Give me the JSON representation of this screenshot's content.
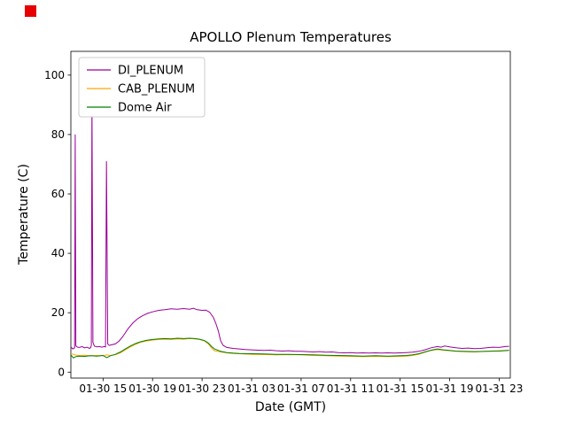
{
  "marker": {
    "color": "#e60000"
  },
  "chart_data": {
    "type": "line",
    "title": "APOLLO Plenum Temperatures",
    "xlabel": "Date (GMT)",
    "ylabel": "Temperature (C)",
    "x_unit": "hours since 01-30 12:00 GMT",
    "xlim": [
      0.4,
      35.9
    ],
    "ylim": [
      -2,
      108
    ],
    "grid": false,
    "legend_position": "upper left",
    "yticks": [
      0,
      20,
      40,
      60,
      80,
      100
    ],
    "xticks": [
      {
        "pos": 3,
        "label": "01-30 15"
      },
      {
        "pos": 7,
        "label": "01-30 19"
      },
      {
        "pos": 11,
        "label": "01-30 23"
      },
      {
        "pos": 15,
        "label": "01-31 03"
      },
      {
        "pos": 19,
        "label": "01-31 07"
      },
      {
        "pos": 23,
        "label": "01-31 11"
      },
      {
        "pos": 27,
        "label": "01-31 15"
      },
      {
        "pos": 31,
        "label": "01-31 19"
      },
      {
        "pos": 35,
        "label": "01-31 23"
      }
    ],
    "series": [
      {
        "name": "DI_PLENUM",
        "color": "#990099",
        "x": [
          0.4,
          0.55,
          0.7,
          0.75,
          0.8,
          0.85,
          0.95,
          1.1,
          1.3,
          1.5,
          1.7,
          1.9,
          2.0,
          2.05,
          2.1,
          2.18,
          2.3,
          2.5,
          2.7,
          2.9,
          3.1,
          3.2,
          3.28,
          3.38,
          3.5,
          3.7,
          4.0,
          4.3,
          4.6,
          5.0,
          5.4,
          5.8,
          6.2,
          6.6,
          7.0,
          7.5,
          8.0,
          8.5,
          9.0,
          9.5,
          10.0,
          10.3,
          10.6,
          11.0,
          11.3,
          11.6,
          11.9,
          12.1,
          12.3,
          12.5,
          12.7,
          13.0,
          13.5,
          14.0,
          14.5,
          15.0,
          15.5,
          16.0,
          16.5,
          17.0,
          17.5,
          18.0,
          18.5,
          19.0,
          19.5,
          20.0,
          20.5,
          21.0,
          21.5,
          22.0,
          22.5,
          23.0,
          23.5,
          24.0,
          24.5,
          25.0,
          25.5,
          26.0,
          26.5,
          27.0,
          27.5,
          28.0,
          28.5,
          29.0,
          29.5,
          30.0,
          30.3,
          30.6,
          31.0,
          31.5,
          32.0,
          32.5,
          33.0,
          33.5,
          34.0,
          34.5,
          35.0,
          35.5,
          35.8
        ],
        "y": [
          8.5,
          7.8,
          8.2,
          80,
          9.0,
          8.6,
          8.4,
          8.3,
          8.6,
          8.2,
          8.4,
          8.0,
          8.3,
          9.0,
          92,
          10,
          8.8,
          8.5,
          8.6,
          8.4,
          8.6,
          8.5,
          71,
          9.5,
          9.0,
          9.2,
          9.5,
          10.5,
          12,
          14.5,
          16.5,
          18,
          19,
          19.8,
          20.3,
          20.8,
          21,
          21.3,
          21.2,
          21.4,
          21.2,
          21.5,
          21.0,
          20.8,
          20.9,
          20.2,
          18.5,
          16.5,
          14,
          10.5,
          9.0,
          8.3,
          8.0,
          7.8,
          7.6,
          7.5,
          7.4,
          7.3,
          7.4,
          7.2,
          7.1,
          7.2,
          7.0,
          7.0,
          6.9,
          6.8,
          6.9,
          6.7,
          6.8,
          6.6,
          6.5,
          6.6,
          6.4,
          6.5,
          6.4,
          6.5,
          6.4,
          6.5,
          6.4,
          6.5,
          6.6,
          6.7,
          7.0,
          7.5,
          8.2,
          8.6,
          8.4,
          8.8,
          8.5,
          8.2,
          8.0,
          8.1,
          7.9,
          8.0,
          8.2,
          8.4,
          8.3,
          8.6,
          8.7
        ]
      },
      {
        "name": "CAB_PLENUM",
        "color": "#ffa500",
        "x": [
          0.4,
          0.7,
          1.0,
          1.5,
          2.0,
          2.5,
          3.0,
          3.3,
          3.6,
          4.0,
          4.4,
          4.8,
          5.2,
          5.6,
          6.0,
          6.5,
          7.0,
          7.5,
          8.0,
          8.5,
          9.0,
          9.5,
          10.0,
          10.4,
          10.8,
          11.2,
          11.5,
          11.8,
          12.0,
          12.5,
          13.0,
          13.5,
          14.0,
          15.0,
          16.0,
          17.0,
          18.0,
          19.0,
          20.0,
          21.0,
          22.0,
          23.0,
          24.0,
          25.0,
          26.0,
          27.0,
          27.5,
          28.0,
          28.5,
          29.0,
          29.5,
          30.0,
          30.5,
          31.0,
          31.5,
          32.0,
          33.0,
          34.0,
          35.0,
          35.8
        ],
        "y": [
          6.3,
          5.8,
          5.6,
          5.7,
          5.5,
          5.6,
          5.5,
          5.8,
          5.6,
          5.9,
          6.5,
          7.5,
          8.5,
          9.3,
          10.0,
          10.5,
          10.8,
          11.0,
          11.1,
          11.0,
          11.2,
          11.1,
          11.3,
          11.2,
          11.0,
          10.5,
          9.5,
          8.0,
          7.2,
          6.8,
          6.5,
          6.3,
          6.2,
          6.0,
          5.9,
          5.8,
          5.9,
          5.8,
          5.6,
          5.5,
          5.4,
          5.3,
          5.2,
          5.3,
          5.2,
          5.3,
          5.4,
          5.6,
          6.0,
          6.7,
          7.3,
          7.6,
          7.4,
          7.2,
          7.0,
          6.9,
          6.8,
          7.0,
          7.2,
          7.4
        ]
      },
      {
        "name": "Dome Air",
        "color": "#008000",
        "x": [
          0.4,
          0.6,
          0.8,
          1.0,
          1.5,
          2.0,
          2.5,
          3.0,
          3.3,
          3.6,
          4.0,
          4.4,
          4.8,
          5.2,
          5.6,
          6.0,
          6.5,
          7.0,
          7.5,
          8.0,
          8.5,
          9.0,
          9.5,
          10.0,
          10.4,
          10.8,
          11.2,
          11.5,
          11.8,
          12.0,
          12.5,
          13.0,
          13.5,
          14.0,
          15.0,
          16.0,
          17.0,
          18.0,
          19.0,
          20.0,
          21.0,
          22.0,
          23.0,
          24.0,
          25.0,
          26.0,
          27.0,
          27.5,
          28.0,
          28.5,
          29.0,
          29.5,
          30.0,
          30.5,
          31.0,
          31.5,
          32.0,
          33.0,
          34.0,
          35.0,
          35.8
        ],
        "y": [
          5.8,
          4.8,
          5.2,
          5.4,
          5.3,
          5.5,
          5.4,
          5.6,
          4.9,
          5.5,
          6.0,
          6.8,
          7.8,
          8.8,
          9.6,
          10.2,
          10.7,
          11.0,
          11.2,
          11.3,
          11.2,
          11.4,
          11.3,
          11.4,
          11.3,
          11.1,
          10.6,
          9.8,
          8.5,
          7.8,
          7.0,
          6.6,
          6.4,
          6.3,
          6.2,
          6.1,
          6.0,
          6.0,
          5.9,
          5.8,
          5.7,
          5.6,
          5.5,
          5.4,
          5.5,
          5.4,
          5.5,
          5.6,
          5.8,
          6.2,
          6.8,
          7.4,
          7.8,
          7.5,
          7.3,
          7.1,
          7.0,
          6.9,
          7.0,
          7.1,
          7.3
        ]
      }
    ]
  }
}
